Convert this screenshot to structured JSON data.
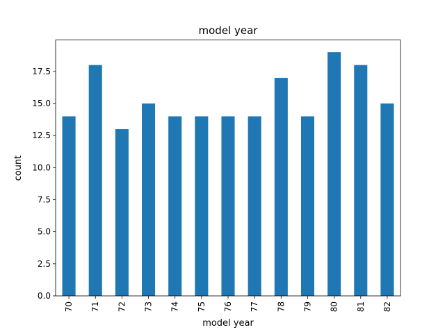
{
  "chart_data": {
    "type": "bar",
    "title": "model year",
    "xlabel": "model year",
    "ylabel": "count",
    "categories": [
      "70",
      "71",
      "72",
      "73",
      "74",
      "75",
      "76",
      "77",
      "78",
      "79",
      "80",
      "81",
      "82"
    ],
    "values": [
      14,
      18,
      13,
      15,
      14,
      14,
      14,
      14,
      17,
      14,
      19,
      18,
      15
    ],
    "ylim": [
      0,
      19.95
    ],
    "yticks": [
      "0.0",
      "2.5",
      "5.0",
      "7.5",
      "10.0",
      "12.5",
      "15.0",
      "17.5"
    ],
    "bar_color": "#1f77b4",
    "grid": false,
    "legend": "none"
  }
}
